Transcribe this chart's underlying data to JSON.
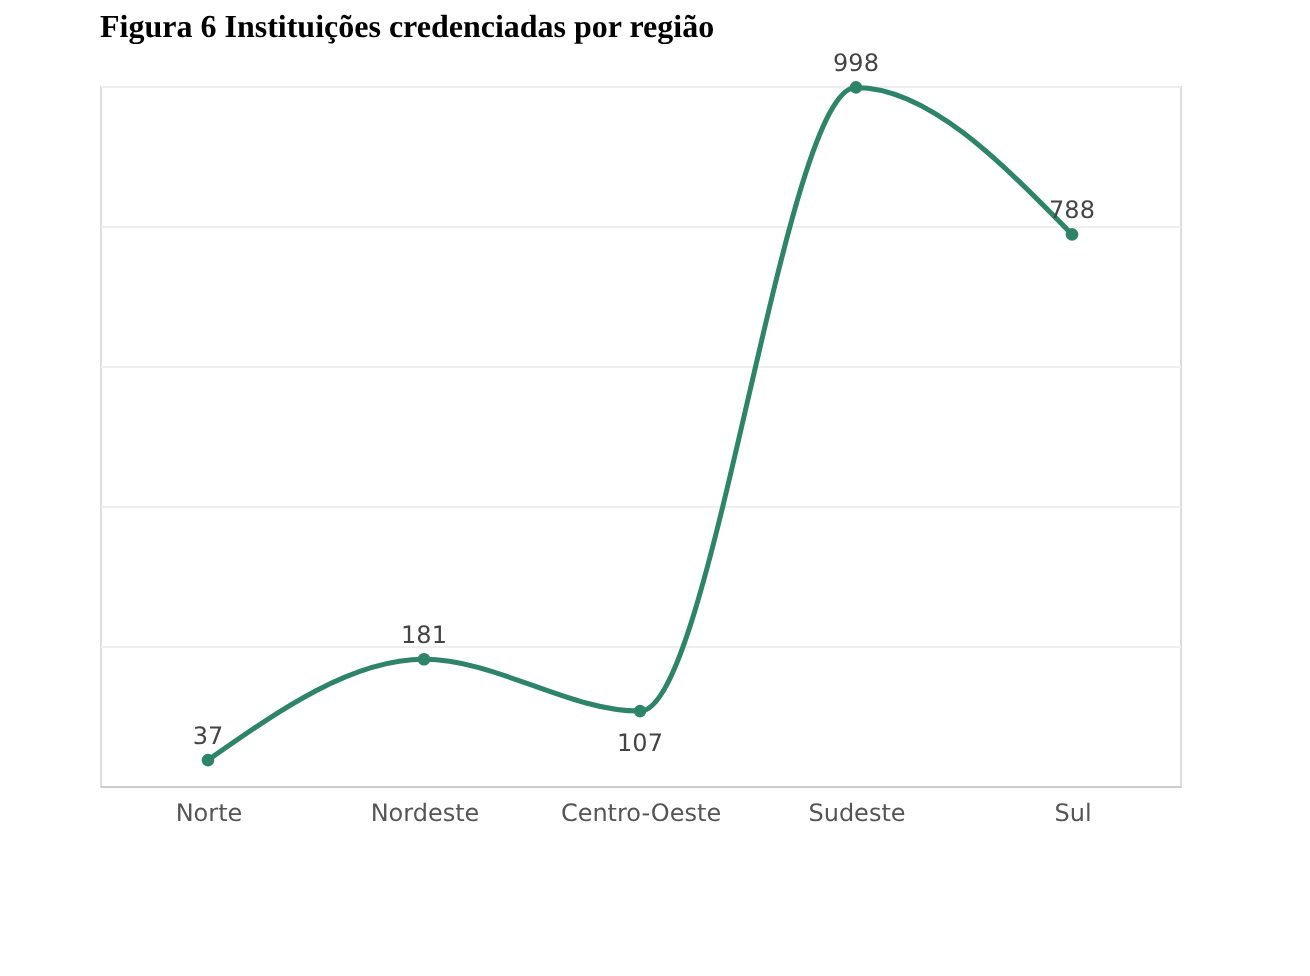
{
  "chart_data": {
    "type": "line",
    "title": "Figura 6 Instituições credenciadas por região",
    "categories": [
      "Norte",
      "Nordeste",
      "Centro-Oeste",
      "Sudeste",
      "Sul"
    ],
    "series": [
      {
        "color": "#2e8468",
        "values": [
          37,
          181,
          107,
          998,
          788
        ]
      }
    ],
    "ylim": [
      0,
      1000
    ],
    "yticks": [
      {
        "value": 0,
        "label": null
      },
      {
        "value": 200,
        "label": null
      },
      {
        "value": 400,
        "label": null
      },
      {
        "value": 600,
        "label": null
      },
      {
        "value": 800,
        "label": null
      },
      {
        "value": 1000,
        "label": null
      }
    ],
    "tick_labels": "x",
    "grid": "y",
    "data_labels": true,
    "marker": "circle"
  }
}
